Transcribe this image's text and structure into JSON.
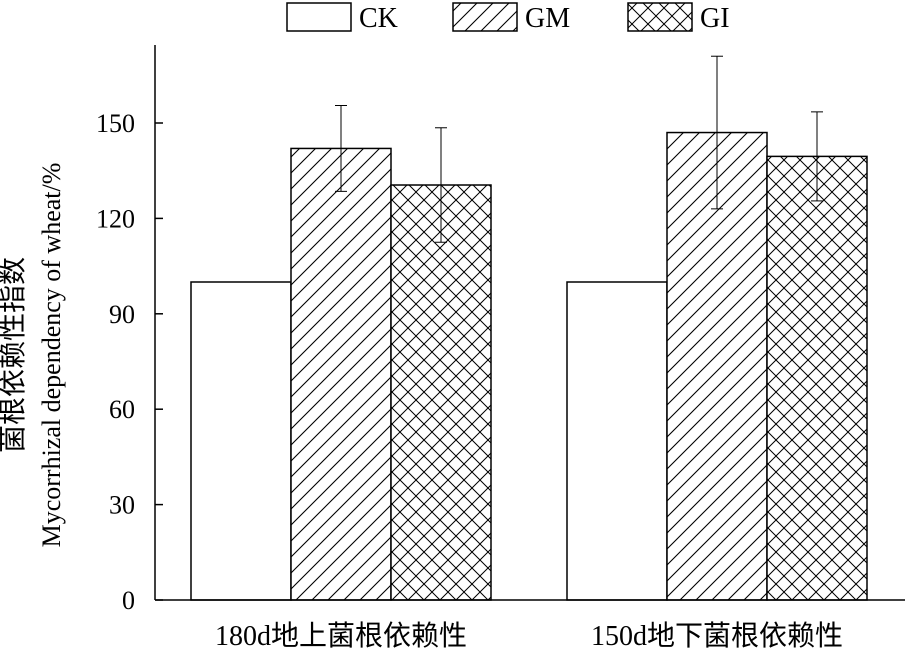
{
  "chart_data": {
    "type": "bar",
    "categories": [
      "180d地上菌根依赖性",
      "150d地下菌根依赖性"
    ],
    "series": [
      {
        "name": "CK",
        "pattern": "none",
        "values": [
          100,
          100
        ],
        "error": [
          0,
          0
        ]
      },
      {
        "name": "GM",
        "pattern": "diagonal",
        "values": [
          142,
          147
        ],
        "error": [
          13.5,
          24
        ]
      },
      {
        "name": "GI",
        "pattern": "crosshatch",
        "values": [
          130.5,
          139.5
        ],
        "error": [
          18,
          14
        ]
      }
    ],
    "ylabel_cn": "菌根依赖性指数",
    "ylabel_en": "Mycorrhizal dependency of wheat/%",
    "yticks": [
      0,
      30,
      60,
      90,
      120,
      150
    ],
    "ylim": [
      0,
      175
    ],
    "legend_position": "top",
    "grid": false,
    "colors": {
      "stroke": "#000000",
      "fill": "#ffffff"
    }
  }
}
